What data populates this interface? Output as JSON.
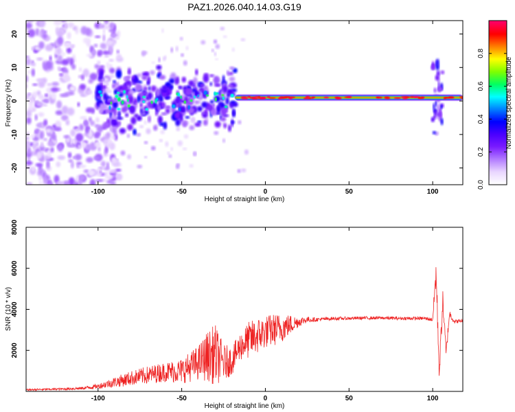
{
  "figure": {
    "title": "PAZ1.2026.040.14.03.G19"
  },
  "chart_data": [
    {
      "type": "heatmap",
      "xlabel": "Height of straight line (km)",
      "ylabel": "Frequency (Hz)",
      "xlim": [
        -143,
        118
      ],
      "ylim": [
        -25,
        24
      ],
      "xticks": [
        -100,
        -50,
        0,
        50,
        100
      ],
      "yticks": [
        -20,
        -10,
        0,
        10,
        20
      ],
      "grid": false,
      "colorbar": {
        "label": "Normalized spectral amplitude",
        "range": [
          0,
          1
        ],
        "ticks": [
          "0.0",
          "0.2",
          "0.4",
          "0.6",
          "0.8"
        ],
        "colormap": [
          "#ffffff",
          "#e9d6ff",
          "#b27cff",
          "#7a1cff",
          "#4a00ff",
          "#0000ff",
          "#0080ff",
          "#00ffff",
          "#00ff60",
          "#7fff00",
          "#ffff00",
          "#ff8000",
          "#ff0000",
          "#ff0066"
        ]
      },
      "features": {
        "tone_segments": [
          {
            "x": [
              -18,
              118
            ],
            "frequency_hz": 1.0,
            "amplitude": 0.85
          },
          {
            "x": [
              -100,
              -18
            ],
            "frequency_hz": 0.5,
            "amplitude": 0.3
          }
        ],
        "noise_band": {
          "x": [
            -143,
            -95
          ],
          "frequency_hz": [
            -25,
            24
          ],
          "amplitude": 0.12
        },
        "spike": {
          "x": 103,
          "frequency_hz": [
            -10,
            12
          ],
          "amplitude": 0.35
        }
      }
    },
    {
      "type": "line",
      "xlabel": "Height of straight line (km)",
      "ylabel": "SNR (10 * v/v)",
      "xlim": [
        -143,
        118
      ],
      "ylim": [
        0,
        8000
      ],
      "xticks": [
        -100,
        -50,
        0,
        50,
        100
      ],
      "yticks": [
        2000,
        4000,
        6000,
        8000
      ],
      "grid": false,
      "line_color": "#ee2222",
      "series": [
        {
          "x": [
            -143,
            -130,
            -120,
            -110,
            -100,
            -90,
            -80,
            -70,
            -60,
            -50,
            -40,
            -35,
            -30,
            -25,
            -20,
            -15,
            -10,
            -5,
            0,
            5,
            10,
            15,
            20,
            25,
            30,
            40,
            50,
            60,
            70,
            80,
            90,
            95,
            100,
            102,
            104,
            106,
            108,
            110,
            113,
            118
          ],
          "values": [
            80,
            100,
            120,
            150,
            250,
            450,
            650,
            800,
            950,
            1000,
            1400,
            1700,
            1800,
            1400,
            1500,
            2200,
            2500,
            2700,
            2900,
            3000,
            3100,
            3250,
            3400,
            3500,
            3500,
            3550,
            3560,
            3580,
            3580,
            3560,
            3560,
            3560,
            3500,
            5800,
            900,
            4500,
            1800,
            3800,
            3400,
            3450
          ],
          "noise_amplitude": [
            40,
            50,
            60,
            70,
            120,
            260,
            360,
            440,
            480,
            620,
            850,
            1200,
            1500,
            900,
            700,
            700,
            900,
            900,
            800,
            800,
            700,
            500,
            250,
            150,
            100,
            80,
            80,
            80,
            80,
            80,
            80,
            80,
            100,
            800,
            600,
            500,
            400,
            200,
            100,
            80
          ]
        }
      ]
    }
  ]
}
